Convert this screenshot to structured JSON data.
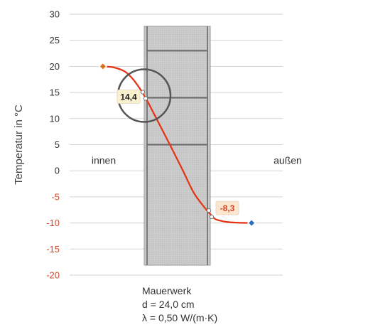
{
  "chart_data": {
    "type": "line",
    "ylabel": "Temperatur in °C",
    "ylim": [
      -20,
      30
    ],
    "yticks": [
      30,
      25,
      20,
      15,
      10,
      5,
      0,
      -5,
      -10,
      -15,
      -20
    ],
    "grid": "horizontal",
    "regions": {
      "inside": "innen",
      "outside": "außen"
    },
    "wall": {
      "x_start": 0,
      "x_end": 24.0,
      "layer_lines": [
        5,
        14,
        23
      ],
      "label": "Mauerwerk",
      "thickness": "d = 24,0 cm",
      "conductivity": "λ = 0,50 W/(m·K)"
    },
    "series": [
      {
        "color": "#e53212",
        "x": [
          -15,
          -11,
          -7,
          -4,
          -1,
          0,
          2,
          6,
          10,
          14,
          18,
          22,
          24,
          26,
          30,
          34,
          39
        ],
        "values": [
          20,
          19.8,
          19,
          17.5,
          15.3,
          14.4,
          12.5,
          8.4,
          4.3,
          0.1,
          -4.2,
          -7.1,
          -8.3,
          -9.3,
          -9.8,
          -9.95,
          -10
        ]
      }
    ],
    "endpoints": [
      {
        "x": -15,
        "y": 20,
        "color": "#e0701a"
      },
      {
        "x": 39,
        "y": -10,
        "color": "#2a6fc4"
      }
    ],
    "annotations": [
      {
        "x": 0,
        "y": 14.4,
        "text": "14,4"
      },
      {
        "x": 24,
        "y": -8.3,
        "text": "-8,3"
      }
    ]
  }
}
